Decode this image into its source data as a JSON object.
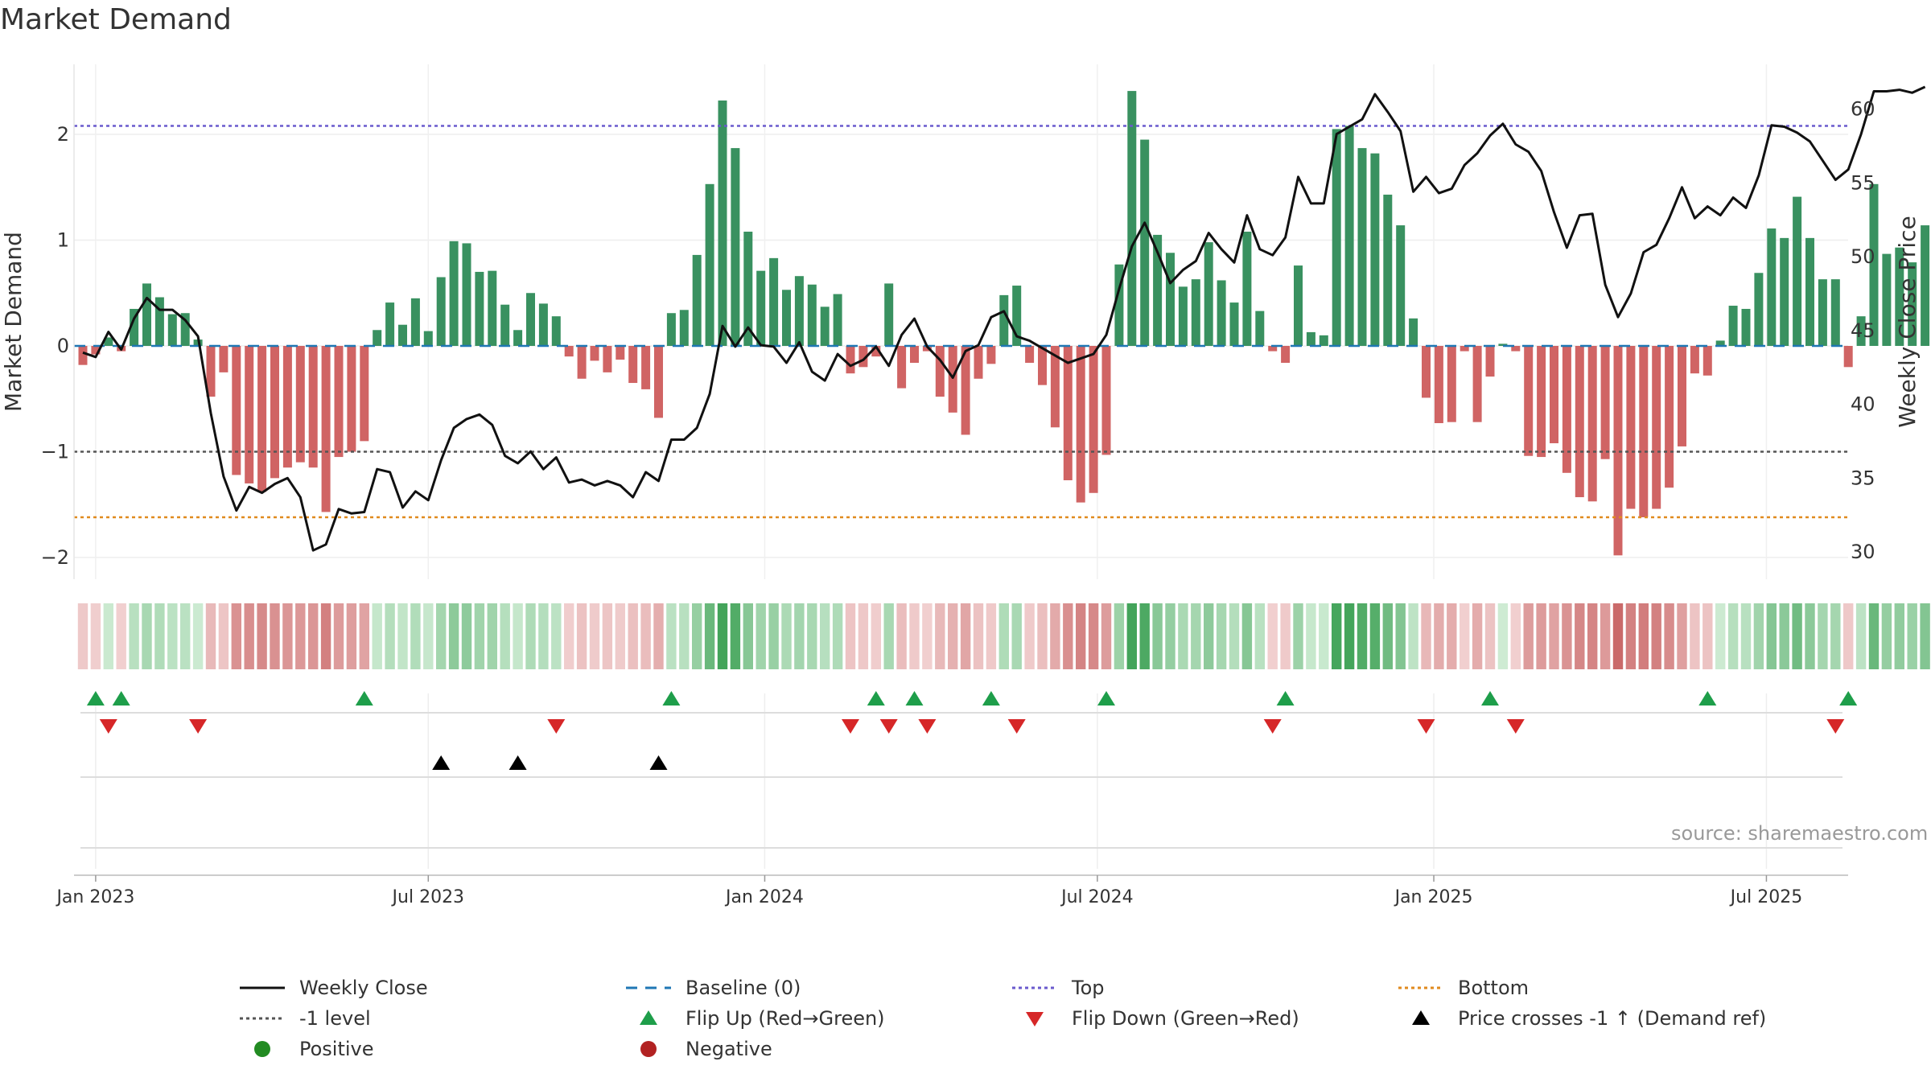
{
  "title": "Market Demand",
  "source": "source: sharemaestro.com",
  "colors": {
    "positive_bar": "#2e8b57",
    "negative_bar": "#cd5c5c",
    "price_line": "#111111",
    "baseline": "#1f77b4",
    "top": "#6a5acd",
    "bottom": "#e08a1e",
    "minus_one": "#555555",
    "flip_up": "#1e9e4a",
    "flip_down": "#d62728",
    "price_cross": "#000000",
    "positive_dot": "#228b22",
    "negative_dot": "#b22222"
  },
  "chart_data": {
    "type": "bar",
    "title": "Market Demand",
    "ylabel": "Market Demand",
    "y2label": "Weekly Close Price",
    "ylim": [
      -2.2,
      2.65
    ],
    "y2lim": [
      28.3,
      64.5
    ],
    "yticks": [
      -2,
      -1,
      0,
      1,
      2
    ],
    "ytick_labels": [
      "−2",
      "−1",
      "0",
      "1",
      "2"
    ],
    "y2ticks": [
      30,
      35,
      40,
      45,
      50,
      55,
      60
    ],
    "y2tick_labels": [
      "30",
      "35",
      "40",
      "45",
      "50",
      "55",
      "60"
    ],
    "x_start": "2022-12-25",
    "x_step_days": 7,
    "xticks": [
      {
        "label": "Jan 2023",
        "week": 1
      },
      {
        "label": "Jul 2023",
        "week": 27
      },
      {
        "label": "Jan 2024",
        "week": 53.3
      },
      {
        "label": "Jul 2024",
        "week": 79.3
      },
      {
        "label": "Jan 2025",
        "week": 105.6
      },
      {
        "label": "Jul 2025",
        "week": 131.6
      }
    ],
    "top_level": 2.08,
    "bottom_level": -1.62,
    "minus_one_level": -1,
    "demand": [
      -0.18,
      -0.08,
      0.08,
      -0.05,
      0.35,
      0.59,
      0.46,
      0.3,
      0.31,
      0.06,
      -0.48,
      -0.25,
      -1.22,
      -1.3,
      -1.38,
      -1.25,
      -1.15,
      -1.1,
      -1.15,
      -1.57,
      -1.05,
      -1.0,
      -0.9,
      0.15,
      0.41,
      0.2,
      0.45,
      0.14,
      0.65,
      0.99,
      0.97,
      0.7,
      0.71,
      0.39,
      0.15,
      0.5,
      0.4,
      0.28,
      -0.1,
      -0.31,
      -0.14,
      -0.25,
      -0.13,
      -0.35,
      -0.41,
      -0.68,
      0.31,
      0.34,
      0.86,
      1.53,
      2.32,
      1.87,
      1.08,
      0.71,
      0.83,
      0.53,
      0.66,
      0.58,
      0.37,
      0.49,
      -0.26,
      -0.2,
      -0.1,
      0.59,
      -0.4,
      -0.16,
      -0.05,
      -0.48,
      -0.63,
      -0.84,
      -0.31,
      -0.17,
      0.48,
      0.57,
      -0.16,
      -0.37,
      -0.77,
      -1.27,
      -1.48,
      -1.39,
      -1.03,
      0.77,
      2.41,
      1.95,
      1.05,
      0.88,
      0.56,
      0.63,
      0.98,
      0.62,
      0.41,
      1.08,
      0.33,
      -0.05,
      -0.16,
      0.76,
      0.13,
      0.1,
      2.05,
      2.08,
      1.87,
      1.82,
      1.43,
      1.14,
      0.26,
      -0.49,
      -0.73,
      -0.72,
      -0.05,
      -0.72,
      -0.29,
      0.02,
      -0.05,
      -1.04,
      -1.05,
      -0.92,
      -1.2,
      -1.43,
      -1.47,
      -1.07,
      -1.98,
      -1.54,
      -1.62,
      -1.54,
      -1.34,
      -0.95,
      -0.26,
      -0.28,
      0.05,
      0.38,
      0.35,
      0.69,
      1.11,
      1.02,
      1.41,
      1.02,
      0.63,
      0.63,
      -0.2,
      0.28,
      1.53,
      0.87,
      0.93,
      0.79,
      1.14
    ],
    "price": [
      43.5,
      43.2,
      44.9,
      43.7,
      45.8,
      47.2,
      46.4,
      46.4,
      45.7,
      44.6,
      39.4,
      35.1,
      32.8,
      34.4,
      34.0,
      34.6,
      35.0,
      33.7,
      30.1,
      30.5,
      32.9,
      32.6,
      32.7,
      35.6,
      35.4,
      33.0,
      34.1,
      33.5,
      36.2,
      38.4,
      39.0,
      39.3,
      38.6,
      36.5,
      36.0,
      36.8,
      35.6,
      36.4,
      34.7,
      34.9,
      34.5,
      34.8,
      34.5,
      33.7,
      35.4,
      34.8,
      37.6,
      37.6,
      38.4,
      40.7,
      45.3,
      43.9,
      45.2,
      44.0,
      43.9,
      42.8,
      44.2,
      42.2,
      41.6,
      43.4,
      42.6,
      43.0,
      43.9,
      42.6,
      44.7,
      45.8,
      43.9,
      43.0,
      41.8,
      43.6,
      44.0,
      45.9,
      46.3,
      44.6,
      44.3,
      43.8,
      43.3,
      42.8,
      43.1,
      43.4,
      44.7,
      47.8,
      50.7,
      52.3,
      50.3,
      48.2,
      49.1,
      49.7,
      51.6,
      50.5,
      49.6,
      52.8,
      50.5,
      50.1,
      51.3,
      55.4,
      53.6,
      53.6,
      58.3,
      58.8,
      59.3,
      61.0,
      59.8,
      58.5,
      54.4,
      55.4,
      54.3,
      54.6,
      56.2,
      57.0,
      58.2,
      59.0,
      57.6,
      57.1,
      55.8,
      53.0,
      50.6,
      52.8,
      52.9,
      48.1,
      45.9,
      47.5,
      50.3,
      50.8,
      52.6,
      54.7,
      52.6,
      53.4,
      52.8,
      54.0,
      53.3,
      55.5,
      58.9,
      58.8,
      58.4,
      57.8,
      56.5,
      55.2,
      55.9,
      58.3,
      61.2,
      61.2,
      61.3,
      61.1,
      61.5
    ],
    "flip_up_weeks": [
      1,
      3,
      22,
      46,
      62,
      65,
      71,
      80,
      94,
      110,
      127,
      138
    ],
    "flip_down_weeks": [
      2,
      9,
      37,
      60,
      63,
      66,
      73,
      93,
      105,
      112,
      137
    ],
    "price_cross_weeks": [
      28,
      34,
      45
    ],
    "legend": [
      {
        "key": "weekly-close",
        "label": "Weekly Close"
      },
      {
        "key": "baseline",
        "label": "Baseline (0)"
      },
      {
        "key": "top",
        "label": "Top"
      },
      {
        "key": "bottom",
        "label": "Bottom"
      },
      {
        "key": "minus-one",
        "label": "-1 level"
      },
      {
        "key": "flip-up",
        "label": "Flip Up (Red→Green)"
      },
      {
        "key": "flip-down",
        "label": "Flip Down (Green→Red)"
      },
      {
        "key": "price-cross",
        "label": "Price crosses -1 ↑ (Demand ref)"
      },
      {
        "key": "positive",
        "label": "Positive"
      },
      {
        "key": "negative",
        "label": "Negative"
      }
    ]
  }
}
